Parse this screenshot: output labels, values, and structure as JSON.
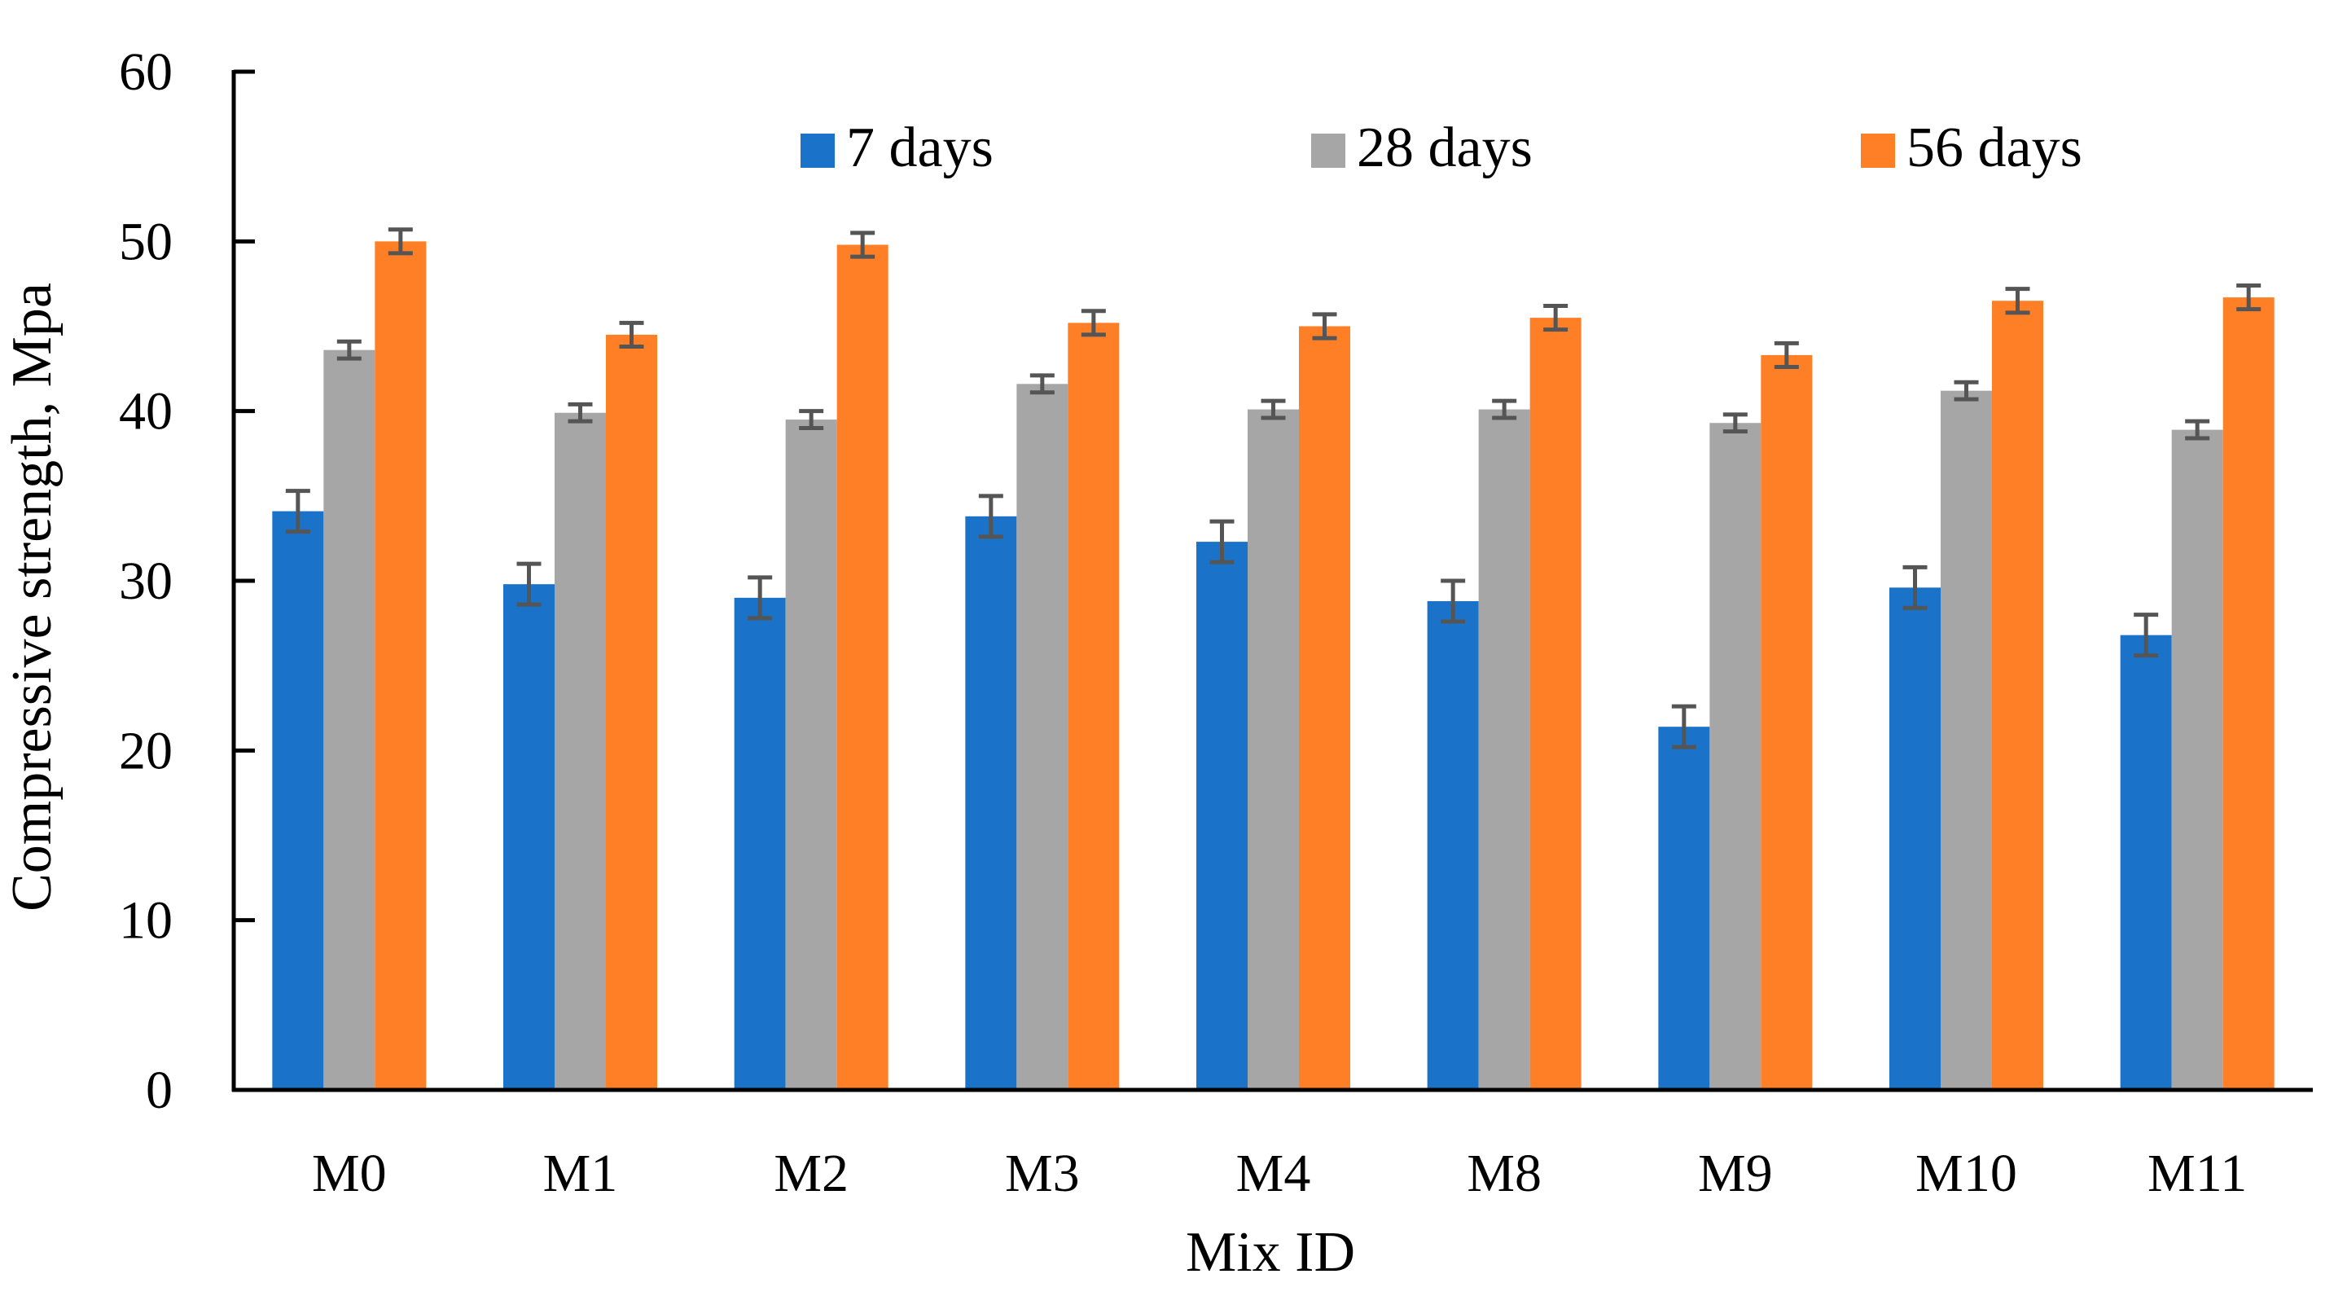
{
  "chart_data": {
    "type": "bar",
    "title": "",
    "xlabel": "Mix ID",
    "ylabel": "Compressive strength, Mpa",
    "ylim": [
      0,
      60
    ],
    "yticks": [
      "0",
      "10",
      "20",
      "30",
      "40",
      "50",
      "60"
    ],
    "categories": [
      "M0",
      "M1",
      "M2",
      "M3",
      "M4",
      "M8",
      "M9",
      "M10",
      "M11"
    ],
    "legend_position": "top",
    "grid": false,
    "series": [
      {
        "name": "7 days",
        "color": "#1a73c8",
        "values": [
          34.1,
          29.8,
          29.0,
          33.8,
          32.3,
          28.8,
          21.4,
          29.6,
          26.8
        ],
        "errors": [
          1.2,
          1.2,
          1.2,
          1.2,
          1.2,
          1.2,
          1.2,
          1.2,
          1.2
        ]
      },
      {
        "name": "28 days",
        "color": "#a6a6a6",
        "values": [
          43.6,
          39.9,
          39.5,
          41.6,
          40.1,
          40.1,
          39.3,
          41.2,
          38.9
        ],
        "errors": [
          0.5,
          0.5,
          0.5,
          0.5,
          0.5,
          0.5,
          0.5,
          0.5,
          0.5
        ]
      },
      {
        "name": "56 days",
        "color": "#ff7f27",
        "values": [
          50.0,
          44.5,
          49.8,
          45.2,
          45.0,
          45.5,
          43.3,
          46.5,
          46.7
        ],
        "errors": [
          0.7,
          0.7,
          0.7,
          0.7,
          0.7,
          0.7,
          0.7,
          0.7,
          0.7
        ]
      }
    ],
    "error_bar_color": "#555555"
  }
}
